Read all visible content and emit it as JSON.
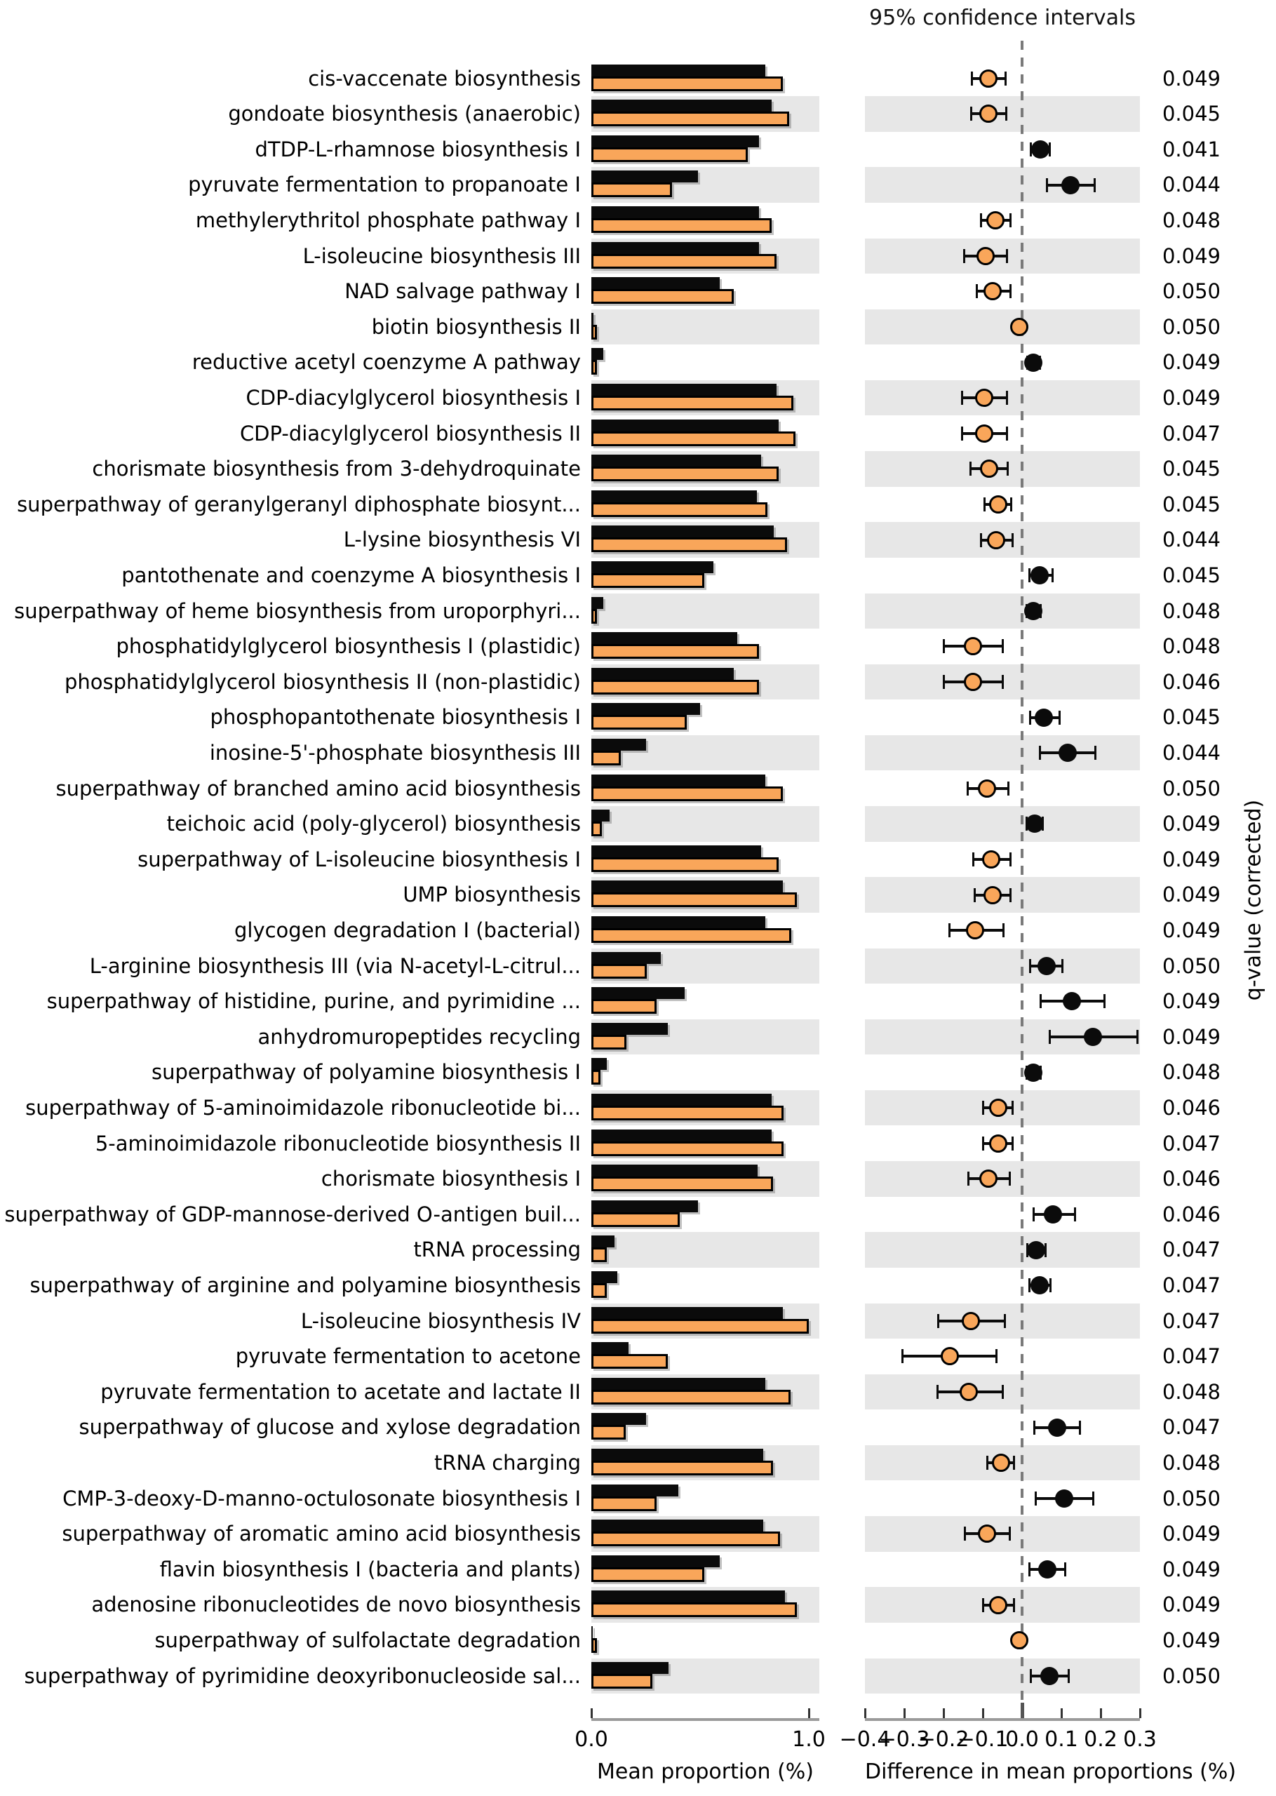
{
  "chart_data": {
    "type": "bar",
    "title": "95% confidence intervals",
    "xlabel_left": "Mean proportion (%)",
    "xlabel_right": "Difference in mean proportions (%)",
    "ylabel_right": "q-value (corrected)",
    "bar_xlim": [
      0.0,
      1.0
    ],
    "diff_xlim": [
      -0.4,
      0.3
    ],
    "bar_ticks": [
      "0.0",
      "1.0"
    ],
    "diff_ticks": [
      "−0.4",
      "−0.3",
      "−0.2",
      "−0.1",
      "0.0",
      "0.1",
      "0.2",
      "0.3"
    ],
    "colors": {
      "group1_bar": "#0b0b0b",
      "group2_bar": "#F9A65A",
      "row_shade": "#e7e7e7",
      "zero_line": "#7a7a7a",
      "axis_line": "#9a9a9a"
    },
    "categories": [
      "cis-vaccenate biosynthesis",
      "gondoate biosynthesis (anaerobic)",
      "dTDP-L-rhamnose biosynthesis I",
      "pyruvate fermentation to propanoate I",
      "methylerythritol phosphate pathway I",
      "L-isoleucine biosynthesis III",
      "NAD salvage pathway I",
      "biotin biosynthesis II",
      "reductive acetyl coenzyme A pathway",
      "CDP-diacylglycerol biosynthesis I",
      "CDP-diacylglycerol biosynthesis II",
      "chorismate biosynthesis from 3-dehydroquinate",
      "superpathway of geranylgeranyl diphosphate biosynt...",
      "L-lysine biosynthesis VI",
      "pantothenate and coenzyme A biosynthesis I",
      "superpathway of heme biosynthesis from uroporphyri...",
      "phosphatidylglycerol biosynthesis I (plastidic)",
      "phosphatidylglycerol biosynthesis II (non-plastidic)",
      "phosphopantothenate biosynthesis I",
      "inosine-5'-phosphate biosynthesis III",
      "superpathway of branched amino acid biosynthesis",
      "teichoic acid (poly-glycerol) biosynthesis",
      "superpathway of L-isoleucine biosynthesis I",
      "UMP biosynthesis",
      "glycogen degradation I (bacterial)",
      "L-arginine biosynthesis III (via N-acetyl-L-citrul...",
      "superpathway of histidine, purine, and pyrimidine ...",
      "anhydromuropeptides recycling",
      "superpathway of polyamine biosynthesis I",
      "superpathway of 5-aminoimidazole ribonucleotide bi...",
      "5-aminoimidazole ribonucleotide biosynthesis II",
      "chorismate biosynthesis I",
      "superpathway of GDP-mannose-derived O-antigen buil...",
      "tRNA processing",
      "superpathway of arginine and polyamine biosynthesis",
      "L-isoleucine biosynthesis IV",
      "pyruvate fermentation to acetone",
      "pyruvate fermentation to acetate and lactate II",
      "superpathway of glucose and xylose degradation",
      "tRNA charging",
      "CMP-3-deoxy-D-manno-octulosonate biosynthesis I",
      "superpathway of aromatic amino acid biosynthesis",
      "flavin biosynthesis I (bacteria and plants)",
      "adenosine ribonucleotides de novo biosynthesis",
      "superpathway of sulfolactate degradation",
      "superpathway of pyrimidine deoxyribonucleoside sal..."
    ],
    "series": [
      {
        "name": "black",
        "values": [
          0.8,
          0.83,
          0.77,
          0.49,
          0.77,
          0.77,
          0.59,
          0.01,
          0.056,
          0.85,
          0.86,
          0.78,
          0.76,
          0.84,
          0.56,
          0.055,
          0.67,
          0.655,
          0.5,
          0.25,
          0.8,
          0.084,
          0.78,
          0.88,
          0.8,
          0.32,
          0.43,
          0.35,
          0.072,
          0.83,
          0.83,
          0.765,
          0.49,
          0.105,
          0.12,
          0.88,
          0.17,
          0.8,
          0.25,
          0.79,
          0.4,
          0.79,
          0.59,
          0.89,
          0.005,
          0.355
        ]
      },
      {
        "name": "orange",
        "values": [
          0.88,
          0.91,
          0.72,
          0.37,
          0.83,
          0.85,
          0.655,
          0.015,
          0.027,
          0.93,
          0.94,
          0.86,
          0.81,
          0.9,
          0.52,
          0.027,
          0.77,
          0.77,
          0.44,
          0.135,
          0.88,
          0.048,
          0.86,
          0.945,
          0.92,
          0.255,
          0.3,
          0.16,
          0.042,
          0.885,
          0.885,
          0.835,
          0.405,
          0.072,
          0.072,
          1.0,
          0.35,
          0.917,
          0.157,
          0.835,
          0.3,
          0.868,
          0.52,
          0.944,
          0.007,
          0.28
        ]
      }
    ],
    "difference": {
      "dot_values": [
        -0.085,
        -0.085,
        0.046,
        0.123,
        -0.068,
        -0.093,
        -0.075,
        -0.007,
        0.029,
        -0.096,
        -0.096,
        -0.084,
        -0.061,
        -0.066,
        0.045,
        0.029,
        -0.125,
        -0.125,
        0.056,
        0.116,
        -0.089,
        0.032,
        -0.078,
        -0.075,
        -0.12,
        0.062,
        0.127,
        0.18,
        0.028,
        -0.061,
        -0.061,
        -0.086,
        0.079,
        0.036,
        0.044,
        -0.13,
        -0.184,
        -0.135,
        0.089,
        -0.054,
        0.107,
        -0.09,
        0.064,
        -0.06,
        -0.007,
        0.069
      ],
      "ci_low": [
        -0.127,
        -0.13,
        0.023,
        0.064,
        -0.105,
        -0.147,
        -0.116,
        -0.007,
        0.013,
        -0.152,
        -0.152,
        -0.132,
        -0.095,
        -0.105,
        0.018,
        0.011,
        -0.2,
        -0.2,
        0.02,
        0.045,
        -0.139,
        0.011,
        -0.125,
        -0.12,
        -0.185,
        0.02,
        0.048,
        0.071,
        0.011,
        -0.099,
        -0.099,
        -0.137,
        0.029,
        0.014,
        0.018,
        -0.214,
        -0.304,
        -0.216,
        0.032,
        -0.088,
        0.034,
        -0.145,
        0.019,
        -0.099,
        -0.007,
        0.022
      ],
      "ci_high": [
        -0.042,
        -0.04,
        0.071,
        0.184,
        -0.03,
        -0.038,
        -0.03,
        -0.007,
        0.045,
        -0.039,
        -0.039,
        -0.036,
        -0.027,
        -0.025,
        0.077,
        0.047,
        -0.05,
        -0.05,
        0.095,
        0.187,
        -0.034,
        0.052,
        -0.03,
        -0.03,
        -0.048,
        0.102,
        0.21,
        0.294,
        0.047,
        -0.025,
        -0.025,
        -0.032,
        0.134,
        0.059,
        0.073,
        -0.044,
        -0.065,
        -0.049,
        0.148,
        -0.021,
        0.181,
        -0.032,
        0.109,
        -0.021,
        -0.007,
        0.118
      ],
      "dot_colors": [
        "orange",
        "orange",
        "black",
        "black",
        "orange",
        "orange",
        "orange",
        "orange",
        "black",
        "orange",
        "orange",
        "orange",
        "orange",
        "orange",
        "black",
        "black",
        "orange",
        "orange",
        "black",
        "black",
        "orange",
        "black",
        "orange",
        "orange",
        "orange",
        "black",
        "black",
        "black",
        "black",
        "orange",
        "orange",
        "orange",
        "black",
        "black",
        "black",
        "orange",
        "orange",
        "orange",
        "black",
        "orange",
        "black",
        "orange",
        "black",
        "orange",
        "orange",
        "black"
      ]
    },
    "q_values": [
      "0.049",
      "0.045",
      "0.041",
      "0.044",
      "0.048",
      "0.049",
      "0.050",
      "0.050",
      "0.049",
      "0.049",
      "0.047",
      "0.045",
      "0.045",
      "0.044",
      "0.045",
      "0.048",
      "0.048",
      "0.046",
      "0.045",
      "0.044",
      "0.050",
      "0.049",
      "0.049",
      "0.049",
      "0.049",
      "0.050",
      "0.049",
      "0.049",
      "0.048",
      "0.046",
      "0.047",
      "0.046",
      "0.046",
      "0.047",
      "0.047",
      "0.047",
      "0.047",
      "0.048",
      "0.047",
      "0.048",
      "0.050",
      "0.049",
      "0.049",
      "0.049",
      "0.049",
      "0.050"
    ]
  }
}
